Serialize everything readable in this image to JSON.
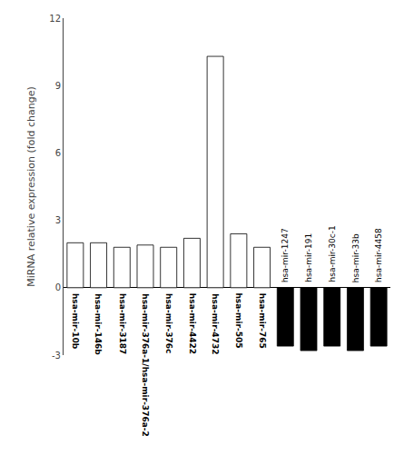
{
  "chart_data": {
    "type": "bar",
    "categories": [
      "hsa-mir-10b",
      "hsa-mir-146b",
      "hsa-mir-3187",
      "hsa-mir-376a-1/hsa-mir-376a-2",
      "hsa-mir-376c",
      "hsa-mir-4422",
      "hsa-mir-4732",
      "hsa-mir-505",
      "hsa-mir-765",
      "hsa-mir-1247",
      "hsa-mir-191",
      "hsa-mir-30c-1",
      "hsa-mir-33b",
      "hsa-mir-4458"
    ],
    "values": [
      2.0,
      2.0,
      1.8,
      1.9,
      1.8,
      2.2,
      10.3,
      2.4,
      1.8,
      -2.6,
      -2.8,
      -2.6,
      -2.8,
      -2.6
    ],
    "colors": [
      "white",
      "white",
      "white",
      "white",
      "white",
      "white",
      "white",
      "white",
      "white",
      "black",
      "black",
      "black",
      "black",
      "black"
    ],
    "ylabel": "MiRNA relative expression (fold change)",
    "ylim": [
      -3,
      12
    ],
    "yticks": [
      -3,
      0,
      3,
      6,
      9,
      12
    ],
    "grid": false,
    "tick_labels": "y"
  }
}
